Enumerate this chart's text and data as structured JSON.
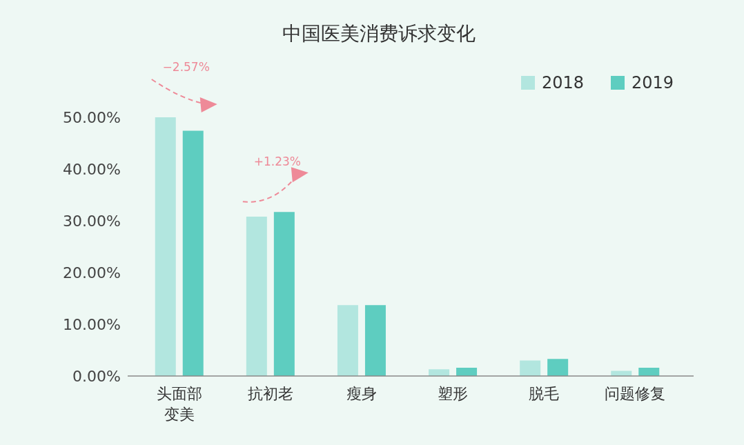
{
  "chart_data": {
    "type": "bar",
    "title": "中国医美消费诉求变化",
    "categories": [
      "头面部变美",
      "抗初老",
      "瘦身",
      "塑形",
      "脱毛",
      "问题修复"
    ],
    "series": [
      {
        "name": "2018",
        "color": "#b2e6df",
        "values": [
          50.0,
          30.8,
          13.7,
          1.3,
          3.0,
          1.0
        ]
      },
      {
        "name": "2019",
        "color": "#5ecdc0",
        "values": [
          47.4,
          31.7,
          13.7,
          1.6,
          3.3,
          1.6
        ]
      }
    ],
    "ylim": [
      0,
      50
    ],
    "yticks": [
      {
        "value": 0,
        "label": "0.00%"
      },
      {
        "value": 10,
        "label": "10.00%"
      },
      {
        "value": 20,
        "label": "20.00%"
      },
      {
        "value": 30,
        "label": "30.00%"
      },
      {
        "value": 40,
        "label": "40.00%"
      },
      {
        "value": 50,
        "label": "50.00%"
      }
    ],
    "annotations": [
      "−2.57%",
      "+1.23%"
    ],
    "legend": "top right",
    "grid": false
  }
}
